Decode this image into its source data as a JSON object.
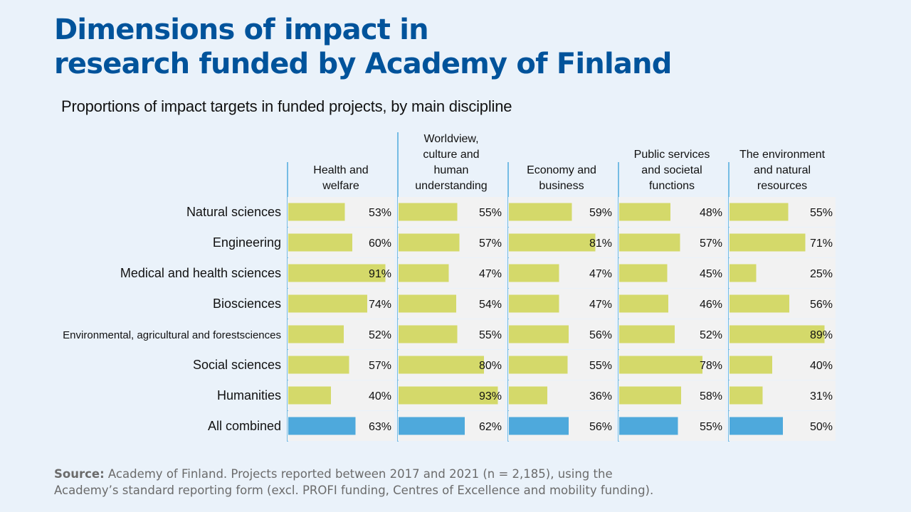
{
  "title_lines": [
    "Dimensions of impact in",
    "research funded by Academy of Finland"
  ],
  "subtitle": "Proportions of impact targets in funded projects, by main discipline",
  "source": {
    "label": "Source:",
    "line1": " Academy of Finland. Projects reported between 2017 and 2021 (n = 2,185), using the",
    "line2": "Academy’s standard reporting form (excl. PROFI funding, Centres of Excellence and mobility funding)."
  },
  "colors": {
    "bar": "#d4d96a",
    "bar_total": "#4ea9dc",
    "panel_bg": "#f2f2f2",
    "divider": "#4ea9dc",
    "title": "#00539b"
  },
  "chart_data": {
    "type": "bar",
    "orientation": "horizontal",
    "unit": "%",
    "xlim": [
      0,
      100
    ],
    "grid": false,
    "categories": [
      "Natural sciences",
      "Engineering",
      "Medical and health sciences",
      "Biosciences",
      "Environmental, agricultural and forestsciences",
      "Social sciences",
      "Humanities",
      "All combined"
    ],
    "series": [
      {
        "name": "Health and\nwelfare",
        "values": [
          53,
          60,
          91,
          74,
          52,
          57,
          40,
          63
        ]
      },
      {
        "name": "Worldview,\nculture and\nhuman\nunderstanding",
        "values": [
          55,
          57,
          47,
          54,
          55,
          80,
          93,
          62
        ]
      },
      {
        "name": "Economy and\nbusiness",
        "values": [
          59,
          81,
          47,
          47,
          56,
          55,
          36,
          56
        ]
      },
      {
        "name": "Public services\nand societal\nfunctions",
        "values": [
          48,
          57,
          45,
          46,
          52,
          78,
          58,
          55
        ]
      },
      {
        "name": "The environment\nand natural\nresources",
        "values": [
          55,
          71,
          25,
          56,
          89,
          40,
          31,
          50
        ]
      }
    ]
  }
}
